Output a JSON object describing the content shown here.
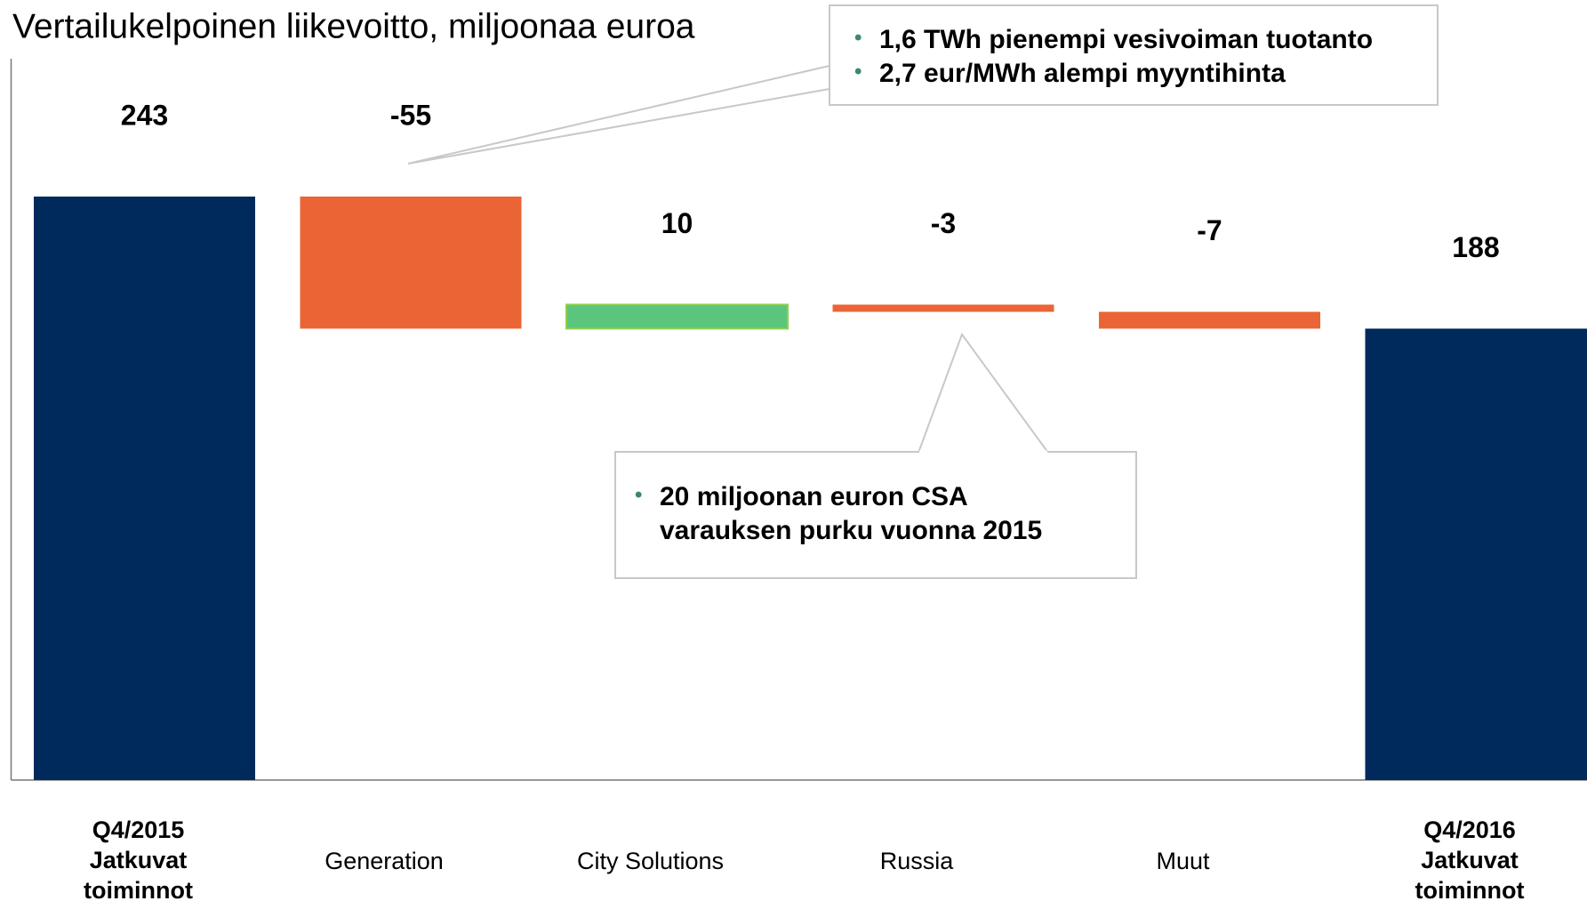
{
  "chart_data": {
    "type": "waterfall",
    "title": "Vertailukelpoinen liikevoitto, miljoonaa euroa",
    "categories": [
      "Q4/2015\nJatkuvat\ntoiminnot",
      "Generation",
      "City Solutions",
      "Russia",
      "Muut",
      "Q4/2016\nJatkuvat\ntoiminnot"
    ],
    "values": [
      243,
      -55,
      10,
      -3,
      -7,
      188
    ],
    "total_color": "#002a5c",
    "increase_color": "#5bc57e",
    "decrease_color": "#eb6436",
    "annotations": [
      {
        "bullets": [
          "1,6 TWh pienempi vesivoiman tuotanto",
          "2,7 eur/MWh alempi myyntihinta"
        ]
      },
      {
        "bullets": [
          "20 miljoonan euron CSA varauksen purku vuonna 2015"
        ]
      }
    ]
  }
}
